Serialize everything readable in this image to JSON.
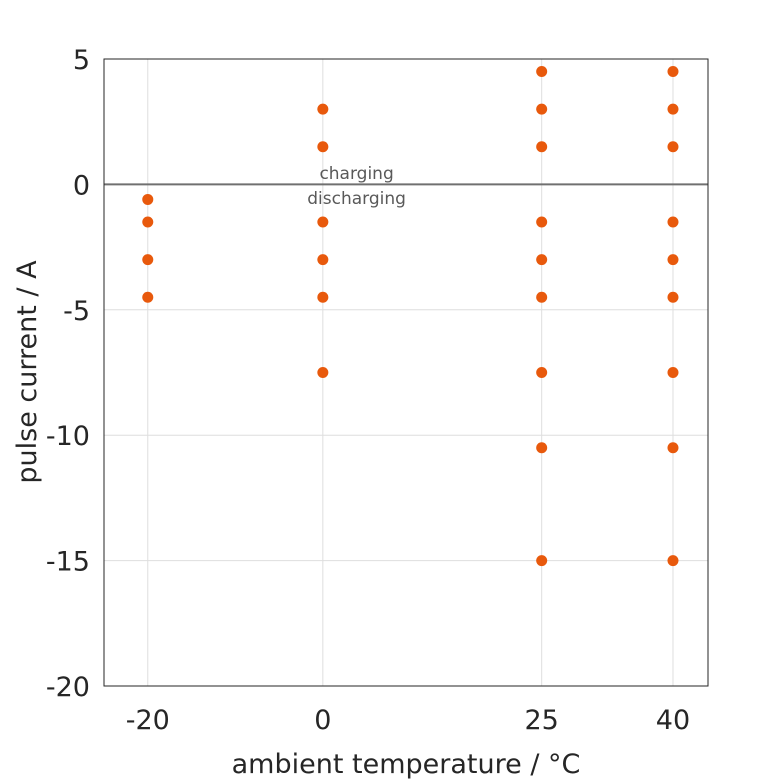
{
  "chart_data": {
    "type": "scatter",
    "title": "",
    "xlabel": "ambient temperature / °C",
    "ylabel": "pulse current / A",
    "x_ticks": [
      -20,
      0,
      25,
      40
    ],
    "y_ticks": [
      5,
      0,
      -5,
      -10,
      -15,
      -20
    ],
    "xlim": [
      -25,
      44
    ],
    "ylim": [
      -20,
      5
    ],
    "grid": true,
    "marker_color": "#E8590C",
    "reference_line": {
      "y": 0,
      "color": "#707070"
    },
    "annotations": [
      {
        "text": "charging",
        "x": 5,
        "y": 0.45
      },
      {
        "text": "discharging",
        "x": 5,
        "y": -0.55
      }
    ],
    "points": [
      {
        "x": -20,
        "y": -0.6
      },
      {
        "x": -20,
        "y": -1.5
      },
      {
        "x": -20,
        "y": -3
      },
      {
        "x": -20,
        "y": -4.5
      },
      {
        "x": 0,
        "y": 3
      },
      {
        "x": 0,
        "y": 1.5
      },
      {
        "x": 0,
        "y": -1.5
      },
      {
        "x": 0,
        "y": -3
      },
      {
        "x": 0,
        "y": -4.5
      },
      {
        "x": 0,
        "y": -7.5
      },
      {
        "x": 25,
        "y": 4.5
      },
      {
        "x": 25,
        "y": 3
      },
      {
        "x": 25,
        "y": 1.5
      },
      {
        "x": 25,
        "y": -1.5
      },
      {
        "x": 25,
        "y": -3
      },
      {
        "x": 25,
        "y": -4.5
      },
      {
        "x": 25,
        "y": -7.5
      },
      {
        "x": 25,
        "y": -10.5
      },
      {
        "x": 25,
        "y": -15
      },
      {
        "x": 40,
        "y": 4.5
      },
      {
        "x": 40,
        "y": 3
      },
      {
        "x": 40,
        "y": 1.5
      },
      {
        "x": 40,
        "y": -1.5
      },
      {
        "x": 40,
        "y": -3
      },
      {
        "x": 40,
        "y": -4.5
      },
      {
        "x": 40,
        "y": -7.5
      },
      {
        "x": 40,
        "y": -10.5
      },
      {
        "x": 40,
        "y": -15
      }
    ]
  }
}
